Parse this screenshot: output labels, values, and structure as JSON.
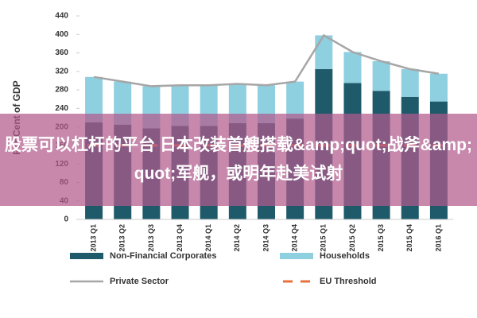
{
  "chart_data": {
    "type": "bar",
    "stacked": true,
    "y_label": "Per Cent of GDP",
    "categories": [
      "2013 Q1",
      "2013 Q2",
      "2013 Q3",
      "2013 Q4",
      "2014 Q1",
      "2014 Q2",
      "2014 Q3",
      "2014 Q4",
      "2015 Q1",
      "2015 Q2",
      "2015 Q3",
      "2015 Q4",
      "2016 Q1"
    ],
    "series": [
      {
        "name": "Non-Financial Corporates",
        "type": "bar",
        "color": "#1f5a6b",
        "values": [
          210,
          205,
          197,
          202,
          202,
          208,
          208,
          218,
          325,
          295,
          278,
          265,
          255
        ]
      },
      {
        "name": "Households",
        "type": "bar",
        "color": "#8ecfe0",
        "values": [
          98,
          93,
          91,
          88,
          88,
          85,
          82,
          80,
          73,
          67,
          64,
          60,
          60
        ]
      },
      {
        "name": "Private Sector",
        "type": "line",
        "color": "#a6a6a6",
        "values": [
          308,
          298,
          288,
          290,
          290,
          293,
          290,
          298,
          398,
          362,
          342,
          325,
          315
        ]
      },
      {
        "name": "EU Threshold",
        "type": "line",
        "dashed": true,
        "color": "#e8703a",
        "values": [
          160,
          160,
          160,
          160,
          160,
          160,
          160,
          160,
          160,
          160,
          160,
          160,
          160
        ]
      }
    ],
    "ylim": [
      0,
      440
    ],
    "yticks": [
      0,
      40,
      80,
      120,
      160,
      200,
      240,
      280,
      320,
      360,
      400,
      440
    ],
    "grid": false
  },
  "overlay_text": "股票可以杠杆的平台 日本改装首艘搭载&amp;quot;战斧&amp;quot;军舰，或明年赴美试射"
}
